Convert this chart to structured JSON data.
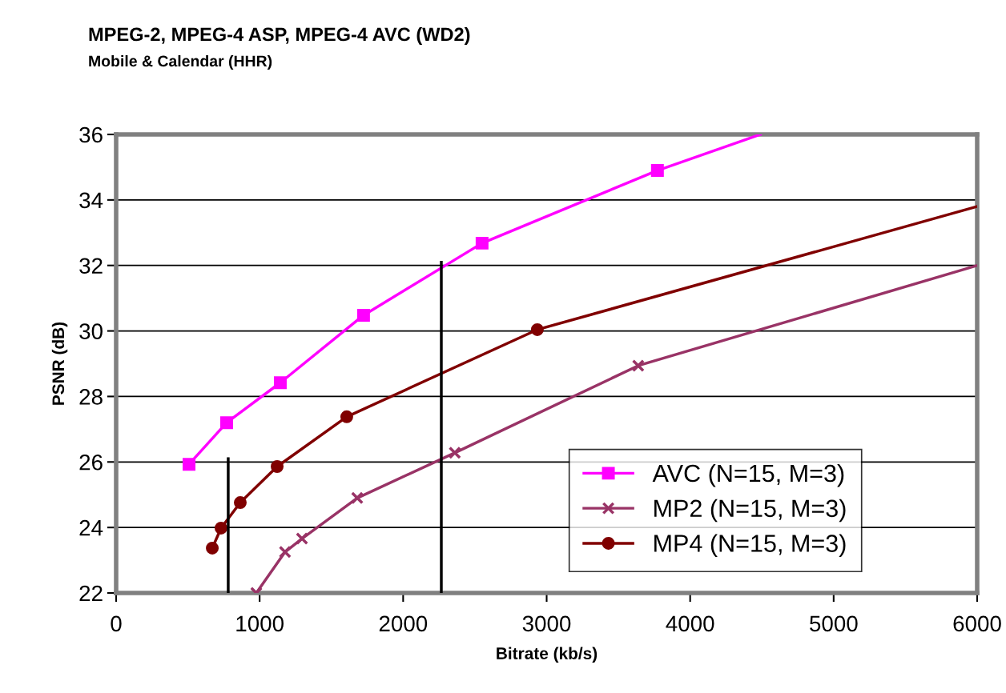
{
  "chart_data": {
    "type": "line",
    "title": "MPEG-2, MPEG-4 ASP, MPEG-4 AVC (WD2)",
    "subtitle": "Mobile & Calendar (HHR)",
    "xlabel": "Bitrate (kb/s)",
    "ylabel": "PSNR (dB)",
    "xlim": [
      0,
      6000
    ],
    "xticks": [
      0,
      1000,
      2000,
      3000,
      4000,
      5000,
      6000
    ],
    "ylim": [
      22,
      36
    ],
    "yticks": [
      22,
      24,
      26,
      28,
      30,
      32,
      34,
      36
    ],
    "grid": "y",
    "legend": "bottom right",
    "series": [
      {
        "name": "AVC (N=15, M=3)",
        "color": "#ff00ff",
        "marker": "square",
        "x": [
          508,
          770,
          1144,
          1724,
          2550,
          3772
        ],
        "values": [
          25.93,
          27.2,
          28.42,
          30.48,
          32.68,
          34.9
        ]
      },
      {
        "name": "MP2 (N=15, M=3)",
        "color": "#993366",
        "marker": "cross",
        "x": [
          977,
          1177,
          1295,
          1680,
          2360,
          3638
        ],
        "values": [
          22.0,
          23.25,
          23.66,
          24.9,
          26.28,
          28.94
        ]
      },
      {
        "name": "MP4 (N=15, M=3)",
        "color": "#800000",
        "marker": "circle",
        "x": [
          670,
          731,
          865,
          1122,
          1607,
          2935
        ],
        "values": [
          23.37,
          23.98,
          24.76,
          25.86,
          27.38,
          30.04
        ]
      },
      {
        "color": "#ff00ff",
        "marker": "none",
        "x": [
          3772,
          4490
        ],
        "values": [
          34.9,
          36.0
        ]
      },
      {
        "color": "#993366",
        "marker": "none",
        "x": [
          3638,
          6000
        ],
        "values": [
          28.94,
          32.0
        ]
      },
      {
        "color": "#800000",
        "marker": "none",
        "x": [
          2935,
          6000
        ],
        "values": [
          30.04,
          33.8
        ]
      },
      {
        "color": "#000000",
        "marker": "none",
        "x": [
          781,
          781
        ],
        "values": [
          22,
          26.1
        ]
      },
      {
        "color": "#000000",
        "marker": "none",
        "x": [
          2266,
          2266
        ],
        "values": [
          22,
          32.1
        ]
      }
    ]
  }
}
